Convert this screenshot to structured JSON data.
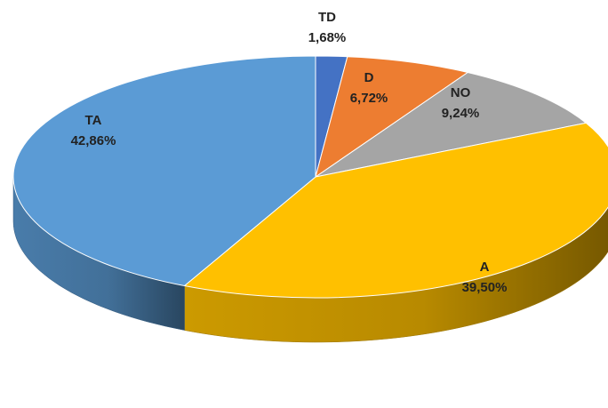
{
  "chart_data": {
    "type": "pie",
    "style": "3d",
    "title": "",
    "slices": [
      {
        "label": "TD",
        "value": 1.68,
        "display": "1,68%",
        "color": "#4472C4"
      },
      {
        "label": "D",
        "value": 6.72,
        "display": "6,72%",
        "color": "#ED7D31"
      },
      {
        "label": "NO",
        "value": 9.24,
        "display": "9,24%",
        "color": "#A5A5A5"
      },
      {
        "label": "A",
        "value": 39.5,
        "display": "39,50%",
        "color": "#FFC000"
      },
      {
        "label": "TA",
        "value": 42.86,
        "display": "42,86%",
        "color": "#5B9BD5"
      }
    ]
  }
}
